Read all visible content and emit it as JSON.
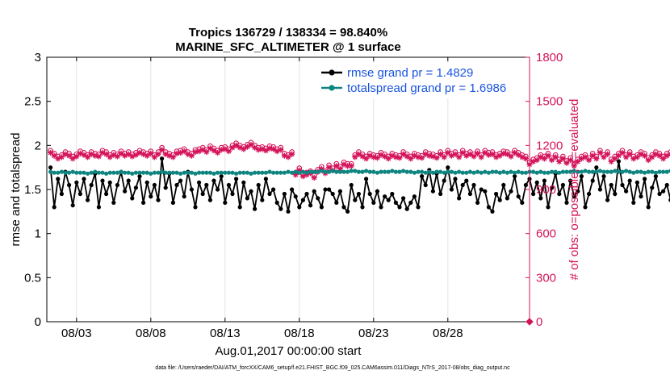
{
  "chart_data": {
    "type": "line",
    "title_line1": "Tropics 136729 / 138334 = 98.840%",
    "title_line2": "MARINE_SFC_ALTIMETER @ 1 surface",
    "xlabel": "Aug.01,2017 00:00:00 start",
    "ylabel_left": "rmse and totalspread",
    "ylabel_right": "# of obs: o=possible; ×=evaluated",
    "footer": "data file: /Users/raeder/DAI/ATM_forcXX/CAM6_setup/f.e21.FHIST_BGC.f09_025.CAM6assim.011/Diags_NTrS_2017-08/obs_diag_output.nc",
    "xlim_days": [
      0,
      32.5
    ],
    "x_ticks_days": [
      2,
      7,
      12,
      17,
      22,
      27
    ],
    "x_tick_labels": [
      "08/03",
      "08/08",
      "08/13",
      "08/18",
      "08/23",
      "08/28"
    ],
    "y_left_lim": [
      0,
      3
    ],
    "y_left_ticks": [
      "0",
      "0.5",
      "1",
      "1.5",
      "2",
      "2.5",
      "3"
    ],
    "y_right_lim": [
      0,
      1800
    ],
    "y_right_ticks": [
      "0",
      "300",
      "600",
      "900",
      "1200",
      "1500",
      "1800"
    ],
    "legend_location": "top-right",
    "colors": {
      "rmse": "#000000",
      "totalspread": "#0f8580",
      "obs": "#d4145a",
      "legend_text": "#1a55e0",
      "axis": "#000000"
    },
    "x_step_days": 0.25,
    "series": [
      {
        "name": "rmse grand pr = 1.4829",
        "axis": "left",
        "marker": "dot",
        "start_day": 0.25,
        "values": [
          1.75,
          1.3,
          1.62,
          1.45,
          1.7,
          1.55,
          1.32,
          1.58,
          1.45,
          1.62,
          1.38,
          1.55,
          1.68,
          1.3,
          1.6,
          1.45,
          1.58,
          1.35,
          1.55,
          1.7,
          1.48,
          1.6,
          1.4,
          1.52,
          1.65,
          1.35,
          1.58,
          1.42,
          1.55,
          1.38,
          1.85,
          1.52,
          1.68,
          1.35,
          1.55,
          1.6,
          1.42,
          1.7,
          1.5,
          1.3,
          1.58,
          1.45,
          1.55,
          1.38,
          1.6,
          1.5,
          1.65,
          1.35,
          1.55,
          1.45,
          1.62,
          1.3,
          1.58,
          1.4,
          1.48,
          1.28,
          1.55,
          1.38,
          1.62,
          1.45,
          1.5,
          1.35,
          1.28,
          1.45,
          1.25,
          1.5,
          1.42,
          1.3,
          1.38,
          1.45,
          1.32,
          1.48,
          1.4,
          1.3,
          1.5,
          1.5,
          1.45,
          1.35,
          1.48,
          1.3,
          1.25,
          1.55,
          1.38,
          1.45,
          1.3,
          1.62,
          1.45,
          1.35,
          1.48,
          1.3,
          1.42,
          1.38,
          1.45,
          1.35,
          1.3,
          1.4,
          1.28,
          1.35,
          1.42,
          1.3,
          1.65,
          1.55,
          1.72,
          1.48,
          1.68,
          1.45,
          1.6,
          1.75,
          1.5,
          1.62,
          1.4,
          1.55,
          1.6,
          1.45,
          1.55,
          1.35,
          1.5,
          1.48,
          1.3,
          1.25,
          1.45,
          1.38,
          1.55,
          1.4,
          1.48,
          1.65,
          1.42,
          1.35,
          1.55,
          1.62,
          1.45,
          1.58,
          1.4,
          1.6,
          1.3,
          1.52,
          1.68,
          1.45,
          1.55,
          1.35,
          1.6,
          1.42,
          1.48,
          1.65,
          1.3,
          1.45,
          1.6,
          1.75,
          1.5,
          1.65,
          1.38,
          1.55,
          1.45,
          1.82,
          1.55,
          1.48,
          1.6,
          1.35,
          1.58,
          1.42,
          1.62,
          1.3,
          1.52,
          1.65,
          1.45,
          1.48,
          1.55,
          1.38,
          1.6,
          1.32,
          1.5,
          1.45,
          1.68,
          1.35,
          1.55,
          1.62,
          1.45,
          1.28,
          1.3,
          1.3,
          1.45,
          1.58,
          1.28,
          1.65,
          1.5,
          1.6,
          1.35,
          1.48,
          1.55,
          1.42,
          1.6,
          1.3,
          1.55,
          1.45,
          1.62,
          1.38,
          1.52,
          1.48,
          1.6,
          1.25,
          1.55
        ]
      },
      {
        "name": "totalspread grand pr = 1.6986",
        "axis": "left",
        "marker": "dot",
        "start_day": 0.25,
        "values": [
          1.7,
          1.69,
          1.69,
          1.7,
          1.69,
          1.69,
          1.7,
          1.69,
          1.69,
          1.69,
          1.68,
          1.69,
          1.7,
          1.69,
          1.69,
          1.68,
          1.69,
          1.69,
          1.69,
          1.7,
          1.69,
          1.69,
          1.68,
          1.69,
          1.69,
          1.69,
          1.69,
          1.68,
          1.69,
          1.69,
          1.7,
          1.69,
          1.69,
          1.69,
          1.69,
          1.68,
          1.69,
          1.69,
          1.69,
          1.68,
          1.69,
          1.69,
          1.69,
          1.69,
          1.68,
          1.69,
          1.69,
          1.69,
          1.69,
          1.69,
          1.68,
          1.69,
          1.69,
          1.69,
          1.68,
          1.69,
          1.69,
          1.69,
          1.69,
          1.7,
          1.69,
          1.69,
          1.69,
          1.69,
          1.7,
          1.69,
          1.7,
          1.69,
          1.7,
          1.69,
          1.7,
          1.7,
          1.7,
          1.71,
          1.7,
          1.7,
          1.71,
          1.7,
          1.7,
          1.7,
          1.7,
          1.71,
          1.71,
          1.7,
          1.7,
          1.71,
          1.7,
          1.7,
          1.69,
          1.7,
          1.7,
          1.7,
          1.71,
          1.7,
          1.7,
          1.71,
          1.7,
          1.7,
          1.69,
          1.7,
          1.7,
          1.69,
          1.7,
          1.69,
          1.7,
          1.7,
          1.69,
          1.7,
          1.7,
          1.69,
          1.7,
          1.69,
          1.69,
          1.7,
          1.69,
          1.7,
          1.69,
          1.7,
          1.69,
          1.7,
          1.7,
          1.69,
          1.7,
          1.69,
          1.7,
          1.69,
          1.7,
          1.69,
          1.69,
          1.7,
          1.7,
          1.69,
          1.7,
          1.69,
          1.69,
          1.7,
          1.7,
          1.69,
          1.7,
          1.7,
          1.7,
          1.71,
          1.7,
          1.7,
          1.71,
          1.7,
          1.7,
          1.7,
          1.71,
          1.7,
          1.7,
          1.7,
          1.71,
          1.7,
          1.7,
          1.71,
          1.7,
          1.69,
          1.7,
          1.7,
          1.69,
          1.7,
          1.7,
          1.69,
          1.7,
          1.7,
          1.7,
          1.71,
          1.7,
          1.71,
          1.7,
          1.7,
          1.69,
          1.7,
          1.7,
          1.7,
          1.71,
          1.7,
          1.7,
          1.71,
          1.7,
          1.7,
          1.69,
          1.7,
          1.7,
          1.69,
          1.7,
          1.7,
          1.69,
          1.68,
          1.69,
          1.68,
          1.67,
          1.68,
          1.67,
          1.68,
          1.67,
          1.68
        ]
      },
      {
        "name": "obs evaluated",
        "axis": "right",
        "marker": "star",
        "start_day": 0.25,
        "values": [
          1150,
          1130,
          1110,
          1120,
          1140,
          1130,
          1110,
          1125,
          1145,
          1135,
          1120,
          1140,
          1130,
          1125,
          1150,
          1140,
          1120,
          1135,
          1125,
          1145,
          1130,
          1140,
          1125,
          1135,
          1150,
          1140,
          1130,
          1145,
          1120,
          1140,
          1170,
          1140,
          1130,
          1120,
          1145,
          1150,
          1160,
          1140,
          1130,
          1155,
          1160,
          1170,
          1155,
          1180,
          1165,
          1150,
          1170,
          1175,
          1160,
          1185,
          1200,
          1185,
          1175,
          1190,
          1205,
          1185,
          1170,
          1175,
          1165,
          1180,
          1175,
          1160,
          1170,
          1130,
          1120,
          1140,
          1000,
          1030,
          990,
          1000,
          1010,
          980,
          1020,
          1040,
          1010,
          1050,
          1030,
          1060,
          1040,
          1070,
          1060,
          1060,
          1120,
          1140,
          1125,
          1110,
          1130,
          1120,
          1115,
          1135,
          1125,
          1110,
          1130,
          1120,
          1115,
          1140,
          1125,
          1110,
          1130,
          1120,
          1115,
          1140,
          1130,
          1125,
          1115,
          1140,
          1120,
          1150,
          1130,
          1140,
          1120,
          1150,
          1130,
          1140,
          1125,
          1145,
          1120,
          1150,
          1135,
          1140,
          1120,
          1130,
          1145,
          1140,
          1125,
          1150,
          1135,
          1120,
          1110,
          1070,
          1090,
          1100,
          1120,
          1110,
          1130,
          1100,
          1120,
          1090,
          1110,
          1080,
          1100,
          1060,
          1090,
          1110,
          1120,
          1100,
          1130,
          1110,
          1150,
          1120,
          1140,
          1090,
          1110,
          1130,
          1150,
          1120,
          1140,
          1110,
          1120,
          1140,
          1130,
          1100,
          1120,
          1140,
          1130,
          1110,
          1130,
          1140,
          1120,
          1110,
          1130,
          1150,
          1140,
          1120,
          1135,
          1140,
          1130,
          1120,
          1145,
          1140,
          1130,
          1150,
          1140,
          1120,
          1135,
          1150,
          1130,
          1140,
          1150,
          1120,
          1135,
          1125,
          1145,
          1130,
          1140,
          1150,
          1125,
          1140,
          1130,
          1135,
          1150,
          1140,
          1120,
          1130
        ]
      },
      {
        "name": "obs possible",
        "axis": "right",
        "marker": "circle",
        "start_day": 0.25,
        "values": [
          1165,
          1145,
          1125,
          1135,
          1155,
          1145,
          1125,
          1140,
          1160,
          1150,
          1135,
          1155,
          1145,
          1140,
          1165,
          1155,
          1135,
          1150,
          1140,
          1160,
          1145,
          1155,
          1140,
          1150,
          1165,
          1155,
          1145,
          1160,
          1135,
          1155,
          1185,
          1155,
          1145,
          1135,
          1160,
          1165,
          1175,
          1155,
          1145,
          1170,
          1175,
          1185,
          1170,
          1195,
          1180,
          1165,
          1185,
          1190,
          1175,
          1200,
          1215,
          1200,
          1190,
          1205,
          1220,
          1200,
          1185,
          1190,
          1180,
          1195,
          1190,
          1175,
          1185,
          1145,
          1135,
          1155,
          1015,
          1045,
          1005,
          1015,
          1025,
          995,
          1035,
          1055,
          1025,
          1065,
          1045,
          1075,
          1055,
          1085,
          1075,
          1075,
          1135,
          1155,
          1140,
          1125,
          1145,
          1135,
          1130,
          1150,
          1140,
          1125,
          1145,
          1135,
          1130,
          1155,
          1140,
          1125,
          1145,
          1135,
          1130,
          1155,
          1145,
          1140,
          1130,
          1155,
          1135,
          1165,
          1145,
          1155,
          1135,
          1165,
          1145,
          1155,
          1140,
          1160,
          1135,
          1165,
          1150,
          1155,
          1135,
          1145,
          1160,
          1155,
          1140,
          1165,
          1150,
          1135,
          1125,
          1085,
          1105,
          1115,
          1135,
          1125,
          1145,
          1115,
          1135,
          1105,
          1125,
          1095,
          1115,
          1075,
          1105,
          1125,
          1135,
          1115,
          1145,
          1125,
          1165,
          1135,
          1155,
          1105,
          1125,
          1145,
          1165,
          1135,
          1155,
          1125,
          1135,
          1155,
          1145,
          1115,
          1135,
          1155,
          1145,
          1125,
          1145,
          1155,
          1135,
          1125,
          1145,
          1165,
          1155,
          1135,
          1150,
          1155,
          1145,
          1135,
          1160,
          1155,
          1145,
          1165,
          1155,
          1135,
          1150,
          1165,
          1145,
          1155,
          1165,
          1135,
          1150,
          1140,
          1160,
          1145,
          1155,
          1165,
          1140,
          1155,
          1145,
          1150,
          1165,
          1155,
          1135,
          1145
        ]
      }
    ],
    "extra_points": [
      {
        "name": "obs at end",
        "day": 32.5,
        "value": 0,
        "axis": "right"
      }
    ]
  }
}
